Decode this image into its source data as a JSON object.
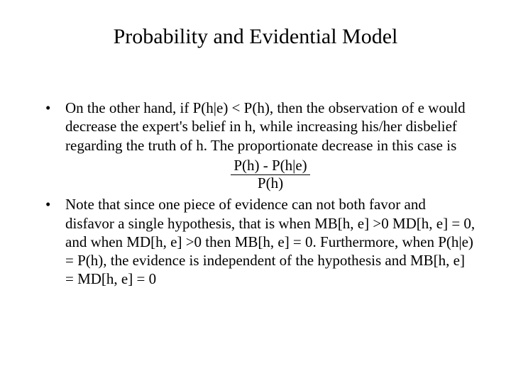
{
  "title": "Probability and Evidential Model",
  "bullets": {
    "b1": "On the other hand, if P(h|e) < P(h), then the observation of e would decrease the expert's belief in h, while increasing his/her disbelief regarding the truth of h. The proportionate decrease in this case is",
    "b2": "Note that since one piece of evidence can not both favor and disfavor a single hypothesis, that is when MB[h, e] >0 MD[h, e] = 0, and when MD[h, e] >0 then MB[h, e] = 0. Furthermore, when P(h|e) = P(h), the evidence is independent of the hypothesis and MB[h, e] = MD[h, e] = 0"
  },
  "fraction": {
    "numerator": "P(h) - P(h|e)",
    "denominator": "P(h)"
  },
  "styles": {
    "title_fontsize": 30,
    "body_fontsize": 21,
    "text_color": "#000000",
    "background_color": "#ffffff",
    "font_family": "Times New Roman"
  }
}
